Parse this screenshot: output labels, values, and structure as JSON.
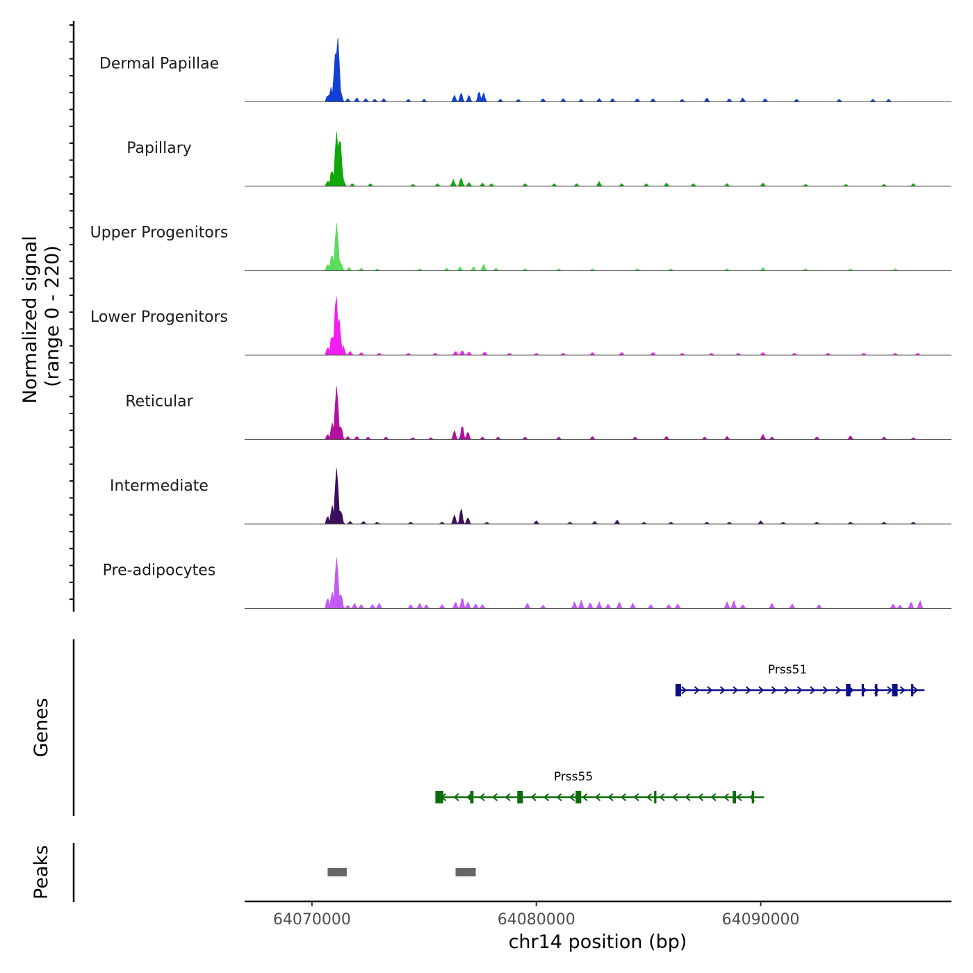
{
  "chart_data": {
    "type": "coverage-track",
    "chromosome": "chr14",
    "x_range": [
      64067000,
      64098500
    ],
    "xlabel": "chr14 position (bp)",
    "x_ticks": [
      64070000,
      64080000,
      64090000
    ],
    "x_tick_labels": [
      "64070000",
      "64080000",
      "64090000"
    ],
    "ylabel": "Normalized signal\n(range 0 - 220)",
    "y_range": [
      0,
      220
    ],
    "tracks": [
      {
        "name": "Dermal Papillae",
        "color": "#1340d4",
        "peaks": [
          [
            64070700,
            0.1
          ],
          [
            64070850,
            0.22
          ],
          [
            64071050,
            0.72
          ],
          [
            64071150,
            0.95
          ],
          [
            64071300,
            0.12
          ],
          [
            64071600,
            0.05
          ],
          [
            64072000,
            0.06
          ],
          [
            64072400,
            0.05
          ],
          [
            64072800,
            0.04
          ],
          [
            64073200,
            0.05
          ],
          [
            64074300,
            0.04
          ],
          [
            64075000,
            0.04
          ],
          [
            64076350,
            0.1
          ],
          [
            64076650,
            0.14
          ],
          [
            64077000,
            0.1
          ],
          [
            64077450,
            0.16
          ],
          [
            64077650,
            0.14
          ],
          [
            64078400,
            0.04
          ],
          [
            64079200,
            0.04
          ],
          [
            64080300,
            0.05
          ],
          [
            64081200,
            0.05
          ],
          [
            64082000,
            0.04
          ],
          [
            64082800,
            0.05
          ],
          [
            64083400,
            0.05
          ],
          [
            64084500,
            0.05
          ],
          [
            64085200,
            0.05
          ],
          [
            64086500,
            0.04
          ],
          [
            64087600,
            0.06
          ],
          [
            64088600,
            0.05
          ],
          [
            64089200,
            0.06
          ],
          [
            64090200,
            0.05
          ],
          [
            64091600,
            0.04
          ],
          [
            64093500,
            0.04
          ],
          [
            64095000,
            0.04
          ],
          [
            64095700,
            0.04
          ]
        ]
      },
      {
        "name": "Papillary",
        "color": "#12a80a",
        "peaks": [
          [
            64070700,
            0.08
          ],
          [
            64070880,
            0.25
          ],
          [
            64071100,
            0.8
          ],
          [
            64071250,
            0.72
          ],
          [
            64071400,
            0.1
          ],
          [
            64071800,
            0.04
          ],
          [
            64072600,
            0.04
          ],
          [
            64074500,
            0.03
          ],
          [
            64075600,
            0.04
          ],
          [
            64076300,
            0.1
          ],
          [
            64076650,
            0.13
          ],
          [
            64077000,
            0.06
          ],
          [
            64077600,
            0.05
          ],
          [
            64078000,
            0.04
          ],
          [
            64079500,
            0.04
          ],
          [
            64080800,
            0.04
          ],
          [
            64081800,
            0.04
          ],
          [
            64082800,
            0.07
          ],
          [
            64083800,
            0.04
          ],
          [
            64084900,
            0.04
          ],
          [
            64085800,
            0.05
          ],
          [
            64087000,
            0.04
          ],
          [
            64088500,
            0.04
          ],
          [
            64090100,
            0.05
          ],
          [
            64092000,
            0.03
          ],
          [
            64093800,
            0.03
          ],
          [
            64095500,
            0.03
          ],
          [
            64096800,
            0.04
          ]
        ]
      },
      {
        "name": "Upper Progenitors",
        "color": "#5bdc5f",
        "peaks": [
          [
            64070700,
            0.1
          ],
          [
            64070880,
            0.25
          ],
          [
            64071100,
            0.7
          ],
          [
            64071300,
            0.12
          ],
          [
            64071650,
            0.05
          ],
          [
            64072200,
            0.04
          ],
          [
            64072900,
            0.03
          ],
          [
            64074800,
            0.03
          ],
          [
            64076000,
            0.04
          ],
          [
            64076600,
            0.06
          ],
          [
            64077200,
            0.06
          ],
          [
            64077650,
            0.1
          ],
          [
            64078200,
            0.04
          ],
          [
            64079500,
            0.03
          ],
          [
            64081000,
            0.03
          ],
          [
            64082500,
            0.03
          ],
          [
            64084500,
            0.03
          ],
          [
            64086000,
            0.03
          ],
          [
            64088500,
            0.03
          ],
          [
            64090100,
            0.05
          ],
          [
            64092000,
            0.03
          ],
          [
            64094000,
            0.03
          ],
          [
            64096000,
            0.03
          ]
        ]
      },
      {
        "name": "Lower Progenitors",
        "color": "#f21ef2",
        "peaks": [
          [
            64070700,
            0.12
          ],
          [
            64070880,
            0.3
          ],
          [
            64071080,
            0.88
          ],
          [
            64071200,
            0.55
          ],
          [
            64071400,
            0.14
          ],
          [
            64071700,
            0.06
          ],
          [
            64072200,
            0.04
          ],
          [
            64073000,
            0.03
          ],
          [
            64074300,
            0.03
          ],
          [
            64075500,
            0.03
          ],
          [
            64076400,
            0.06
          ],
          [
            64076700,
            0.07
          ],
          [
            64077000,
            0.05
          ],
          [
            64077700,
            0.05
          ],
          [
            64078800,
            0.03
          ],
          [
            64080000,
            0.03
          ],
          [
            64081200,
            0.03
          ],
          [
            64082500,
            0.04
          ],
          [
            64083800,
            0.04
          ],
          [
            64085200,
            0.04
          ],
          [
            64086500,
            0.03
          ],
          [
            64087800,
            0.03
          ],
          [
            64089000,
            0.03
          ],
          [
            64090100,
            0.04
          ],
          [
            64091500,
            0.03
          ],
          [
            64093000,
            0.03
          ],
          [
            64094600,
            0.03
          ],
          [
            64096000,
            0.03
          ],
          [
            64097000,
            0.03
          ]
        ]
      },
      {
        "name": "Reticular",
        "color": "#b3109e",
        "peaks": [
          [
            64070700,
            0.08
          ],
          [
            64070900,
            0.25
          ],
          [
            64071100,
            0.78
          ],
          [
            64071300,
            0.2
          ],
          [
            64071600,
            0.05
          ],
          [
            64072000,
            0.05
          ],
          [
            64072500,
            0.04
          ],
          [
            64073300,
            0.04
          ],
          [
            64074500,
            0.03
          ],
          [
            64075300,
            0.03
          ],
          [
            64076350,
            0.14
          ],
          [
            64076700,
            0.22
          ],
          [
            64076950,
            0.12
          ],
          [
            64077600,
            0.04
          ],
          [
            64078300,
            0.04
          ],
          [
            64079500,
            0.04
          ],
          [
            64081000,
            0.04
          ],
          [
            64082500,
            0.05
          ],
          [
            64084400,
            0.04
          ],
          [
            64085800,
            0.05
          ],
          [
            64087500,
            0.04
          ],
          [
            64088500,
            0.05
          ],
          [
            64090100,
            0.08
          ],
          [
            64090500,
            0.04
          ],
          [
            64092500,
            0.04
          ],
          [
            64094000,
            0.06
          ],
          [
            64095500,
            0.04
          ],
          [
            64096800,
            0.03
          ]
        ]
      },
      {
        "name": "Intermediate",
        "color": "#3a0f5c",
        "peaks": [
          [
            64070700,
            0.12
          ],
          [
            64070900,
            0.28
          ],
          [
            64071100,
            0.82
          ],
          [
            64071300,
            0.2
          ],
          [
            64071700,
            0.04
          ],
          [
            64072300,
            0.04
          ],
          [
            64072900,
            0.03
          ],
          [
            64074400,
            0.03
          ],
          [
            64075800,
            0.03
          ],
          [
            64076350,
            0.14
          ],
          [
            64076650,
            0.24
          ],
          [
            64076950,
            0.1
          ],
          [
            64077800,
            0.03
          ],
          [
            64080000,
            0.05
          ],
          [
            64081500,
            0.03
          ],
          [
            64082600,
            0.04
          ],
          [
            64083600,
            0.06
          ],
          [
            64084800,
            0.03
          ],
          [
            64086000,
            0.03
          ],
          [
            64087600,
            0.03
          ],
          [
            64088600,
            0.03
          ],
          [
            64090000,
            0.05
          ],
          [
            64091000,
            0.03
          ],
          [
            64092500,
            0.03
          ],
          [
            64094000,
            0.03
          ],
          [
            64095500,
            0.03
          ],
          [
            64096800,
            0.03
          ]
        ]
      },
      {
        "name": "Pre-adipocytes",
        "color": "#c25bf2",
        "peaks": [
          [
            64070700,
            0.16
          ],
          [
            64070900,
            0.25
          ],
          [
            64071100,
            0.75
          ],
          [
            64071300,
            0.22
          ],
          [
            64071600,
            0.05
          ],
          [
            64071900,
            0.08
          ],
          [
            64072200,
            0.06
          ],
          [
            64072700,
            0.06
          ],
          [
            64073000,
            0.08
          ],
          [
            64074400,
            0.06
          ],
          [
            64074800,
            0.08
          ],
          [
            64075100,
            0.06
          ],
          [
            64075800,
            0.06
          ],
          [
            64076400,
            0.1
          ],
          [
            64076700,
            0.17
          ],
          [
            64076950,
            0.1
          ],
          [
            64077300,
            0.07
          ],
          [
            64077600,
            0.06
          ],
          [
            64079600,
            0.08
          ],
          [
            64080300,
            0.05
          ],
          [
            64081700,
            0.1
          ],
          [
            64082000,
            0.12
          ],
          [
            64082400,
            0.09
          ],
          [
            64082800,
            0.1
          ],
          [
            64083200,
            0.07
          ],
          [
            64083700,
            0.1
          ],
          [
            64084300,
            0.08
          ],
          [
            64085100,
            0.06
          ],
          [
            64085900,
            0.06
          ],
          [
            64086300,
            0.07
          ],
          [
            64088500,
            0.1
          ],
          [
            64088800,
            0.12
          ],
          [
            64089200,
            0.06
          ],
          [
            64090500,
            0.08
          ],
          [
            64091400,
            0.07
          ],
          [
            64092600,
            0.06
          ],
          [
            64095900,
            0.07
          ],
          [
            64096200,
            0.05
          ],
          [
            64096700,
            0.1
          ],
          [
            64097100,
            0.12
          ]
        ]
      }
    ],
    "genes": [
      {
        "name": "Prss51",
        "strand": "+",
        "start": 64086200,
        "end": 64097300,
        "color": "#0d0d8a",
        "exons": [
          [
            64086200,
            64086450
          ],
          [
            64093800,
            64094000
          ],
          [
            64094500,
            64094600
          ],
          [
            64095100,
            64095200
          ],
          [
            64095850,
            64096100
          ],
          [
            64096700,
            64096800
          ]
        ]
      },
      {
        "name": "Prss55",
        "strand": "-",
        "start": 64075500,
        "end": 64090150,
        "color": "#0a6b0a",
        "exons": [
          [
            64075500,
            64075850
          ],
          [
            64077050,
            64077200
          ],
          [
            64079150,
            64079400
          ],
          [
            64081750,
            64082000
          ],
          [
            64085250,
            64085350
          ],
          [
            64088750,
            64088900
          ],
          [
            64089600,
            64089700
          ]
        ]
      }
    ],
    "peaks_track": [
      [
        64070700,
        64071550
      ],
      [
        64076400,
        64077300
      ]
    ],
    "track_labels": {
      "genes": "Genes",
      "peaks": "Peaks"
    }
  }
}
